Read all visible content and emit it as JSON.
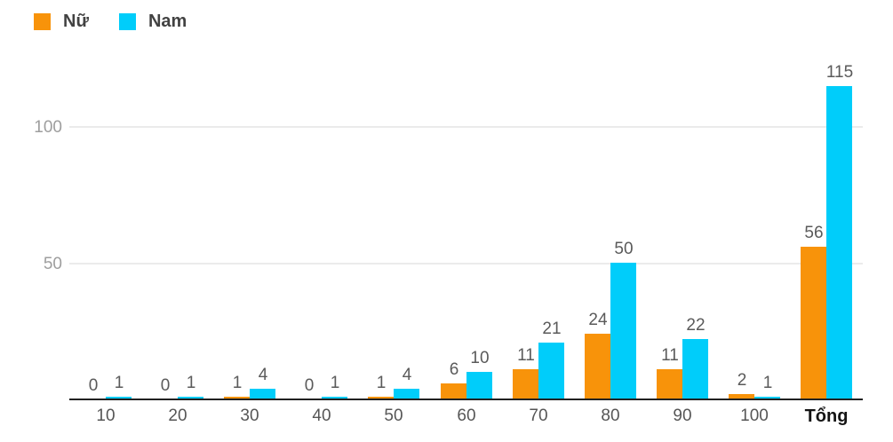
{
  "legend": {
    "items": [
      {
        "label": "Nữ",
        "color": "#F8930A"
      },
      {
        "label": "Nam",
        "color": "#00CDFA"
      }
    ]
  },
  "chart_data": {
    "type": "bar",
    "title": "",
    "xlabel": "",
    "ylabel": "",
    "categories": [
      "10",
      "20",
      "30",
      "40",
      "50",
      "60",
      "70",
      "80",
      "90",
      "100",
      "Tổng"
    ],
    "series": [
      {
        "name": "Nữ",
        "color": "#F8930A",
        "values": [
          0,
          0,
          1,
          0,
          1,
          6,
          11,
          24,
          11,
          2,
          56
        ]
      },
      {
        "name": "Nam",
        "color": "#00CDFA",
        "values": [
          1,
          1,
          4,
          1,
          4,
          10,
          21,
          50,
          22,
          1,
          115
        ]
      }
    ],
    "yticks": [
      50,
      100
    ],
    "ylim": [
      0,
      130
    ],
    "grid": true,
    "legend_position": "top-left",
    "value_labels": true
  },
  "colors": {
    "grid": "#EBEBEB",
    "axis": "#212121",
    "y_tick_text": "#9E9E9E",
    "value_text": "#5A5A5A",
    "category_text": "#565656",
    "total_category_text": "#141414"
  }
}
